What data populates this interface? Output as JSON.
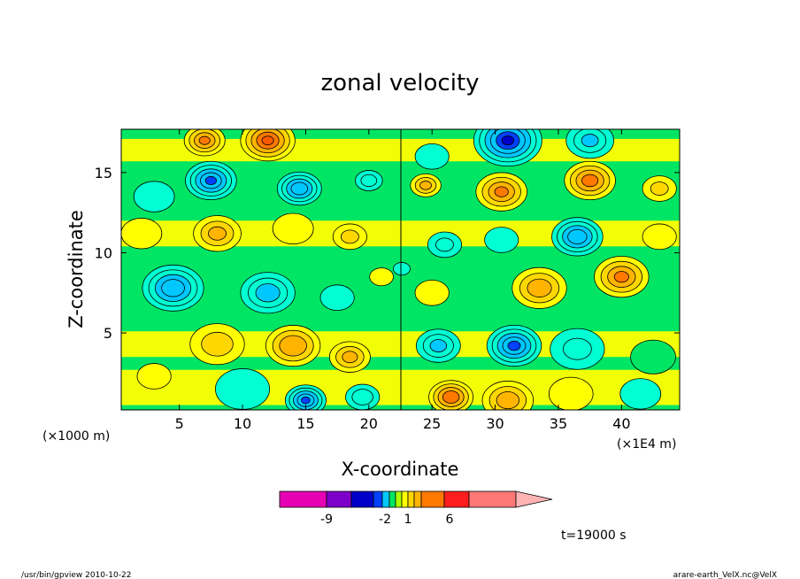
{
  "chart_data": {
    "type": "heatmap",
    "title": "zonal velocity",
    "xlabel": "X-coordinate",
    "ylabel": "Z-coordinate",
    "x_unit_left": "(×1000 m)",
    "x_unit_right": "(×1E4 m)",
    "x_ticks": [
      5,
      10,
      15,
      20,
      25,
      30,
      35,
      40
    ],
    "y_ticks": [
      5,
      10,
      15
    ],
    "xlim": [
      0.4,
      44.6
    ],
    "ylim": [
      0.2,
      17.7
    ],
    "colorbar": {
      "tick_labels": [
        {
          "label": "-9",
          "value": -9
        },
        {
          "label": "-2",
          "value": -2
        },
        {
          "label": "1",
          "value": 1
        },
        {
          "label": "6",
          "value": 6
        }
      ],
      "segments": [
        {
          "color": "#e600b4"
        },
        {
          "color": "#7d00c8"
        },
        {
          "color": "#0000c8"
        },
        {
          "color": "#0040ff"
        },
        {
          "color": "#00c8ff"
        },
        {
          "color": "#00e664"
        },
        {
          "color": "#aaff00"
        },
        {
          "color": "#ffff00"
        },
        {
          "color": "#ffd700"
        },
        {
          "color": "#ffb400"
        },
        {
          "color": "#ff7800"
        },
        {
          "color": "#ff1e1e"
        },
        {
          "color": "#ff7878"
        },
        {
          "color": "#ffb4b4"
        }
      ]
    },
    "blobs": [
      {
        "x": 3,
        "z": 13.5,
        "v": -0.9,
        "r": 1.2
      },
      {
        "x": 7.5,
        "z": 14.5,
        "v": -4.5,
        "r": 1.5
      },
      {
        "x": 14.5,
        "z": 14,
        "v": -4.2,
        "r": 1.3
      },
      {
        "x": 20,
        "z": 14.5,
        "v": -1.8,
        "r": 0.8
      },
      {
        "x": 12,
        "z": 17,
        "v": 4.5,
        "r": 1.6
      },
      {
        "x": 7,
        "z": 17,
        "v": 3.5,
        "r": 1.2
      },
      {
        "x": 2,
        "z": 11.2,
        "v": 1.2,
        "r": 1.2
      },
      {
        "x": 8,
        "z": 11.2,
        "v": 2.6,
        "r": 1.4
      },
      {
        "x": 14,
        "z": 11.5,
        "v": 1.2,
        "r": 1.2
      },
      {
        "x": 18.5,
        "z": 11,
        "v": 1.5,
        "r": 1.0
      },
      {
        "x": 4.5,
        "z": 7.8,
        "v": -4.2,
        "r": 1.8
      },
      {
        "x": 12,
        "z": 7.5,
        "v": -3,
        "r": 1.6
      },
      {
        "x": 17.5,
        "z": 7.2,
        "v": -1,
        "r": 1.0
      },
      {
        "x": 21,
        "z": 8.5,
        "v": 1.2,
        "r": 0.7
      },
      {
        "x": 8,
        "z": 4.3,
        "v": 1.8,
        "r": 1.6
      },
      {
        "x": 14,
        "z": 4.2,
        "v": 3.4,
        "r": 1.6
      },
      {
        "x": 18.5,
        "z": 3.5,
        "v": 2.6,
        "r": 1.2
      },
      {
        "x": 3,
        "z": 2.3,
        "v": 1.3,
        "r": 1.0
      },
      {
        "x": 15,
        "z": 0.8,
        "v": -4.5,
        "r": 1.2
      },
      {
        "x": 19.5,
        "z": 1,
        "v": -2,
        "r": 1.0
      },
      {
        "x": 10,
        "z": 1.5,
        "v": -0.6,
        "r": 1.6
      },
      {
        "x": 31,
        "z": 17,
        "v": -5.5,
        "r": 2.0
      },
      {
        "x": 37.5,
        "z": 17,
        "v": -2.5,
        "r": 1.4
      },
      {
        "x": 25,
        "z": 16,
        "v": -0.8,
        "r": 1.0
      },
      {
        "x": 24.5,
        "z": 14.2,
        "v": 2.6,
        "r": 0.9
      },
      {
        "x": 30.5,
        "z": 13.8,
        "v": 3.5,
        "r": 1.5
      },
      {
        "x": 37.5,
        "z": 14.5,
        "v": 3.8,
        "r": 1.5
      },
      {
        "x": 43,
        "z": 14,
        "v": 1.5,
        "r": 1.0
      },
      {
        "x": 26,
        "z": 10.5,
        "v": -1.5,
        "r": 1.0
      },
      {
        "x": 30.5,
        "z": 10.8,
        "v": -0.8,
        "r": 1.0
      },
      {
        "x": 36.5,
        "z": 11,
        "v": -4.2,
        "r": 1.5
      },
      {
        "x": 43,
        "z": 11,
        "v": 1.2,
        "r": 1.0
      },
      {
        "x": 25,
        "z": 7.5,
        "v": 1.4,
        "r": 1.0
      },
      {
        "x": 33.5,
        "z": 7.8,
        "v": 3,
        "r": 1.6
      },
      {
        "x": 40,
        "z": 8.5,
        "v": 3.5,
        "r": 1.6
      },
      {
        "x": 25.5,
        "z": 4.2,
        "v": -2.6,
        "r": 1.3
      },
      {
        "x": 31.5,
        "z": 4.2,
        "v": -4.6,
        "r": 1.6
      },
      {
        "x": 36.5,
        "z": 4,
        "v": -1.5,
        "r": 1.6
      },
      {
        "x": 42.5,
        "z": 3.5,
        "v": -0.4,
        "r": 1.2
      },
      {
        "x": 26.5,
        "z": 1,
        "v": 4.2,
        "r": 1.3
      },
      {
        "x": 31,
        "z": 0.8,
        "v": 3,
        "r": 1.5
      },
      {
        "x": 36,
        "z": 1.2,
        "v": 1.2,
        "r": 1.3
      },
      {
        "x": 41.5,
        "z": 1.2,
        "v": -0.8,
        "r": 1.2
      },
      {
        "x": 22.6,
        "z": 9,
        "v": -0.5,
        "r": 0.5
      }
    ]
  },
  "annotations": {
    "time_label": "t=19000 s",
    "footer_left": "/usr/bin/gpview   2010-10-22",
    "footer_right": "arare-earth_VelX.nc@VelX"
  }
}
